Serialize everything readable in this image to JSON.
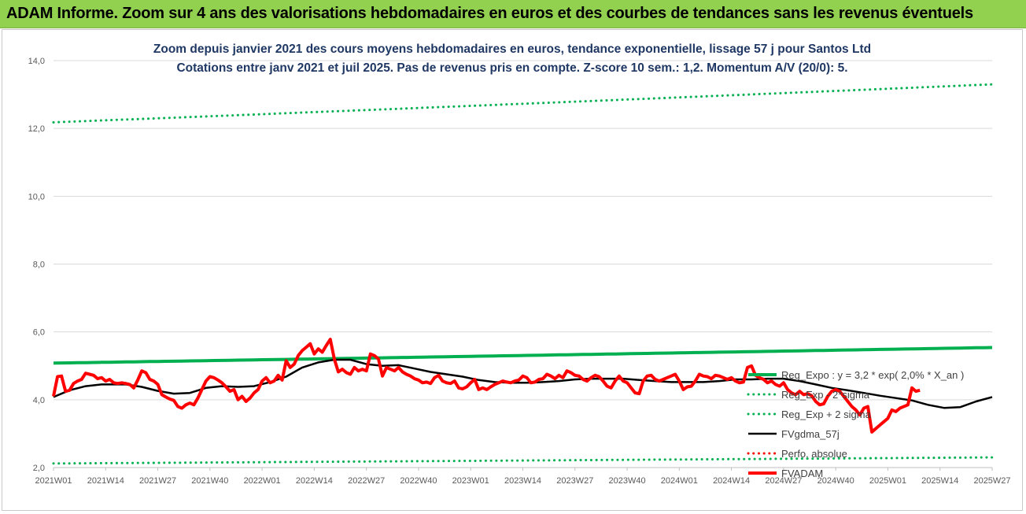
{
  "header": {
    "title": "ADAM Informe. Zoom sur 4 ans des valorisations hebdomadaires en euros et des courbes de tendances sans les revenus éventuels",
    "background_color": "#92d050"
  },
  "chart_data": {
    "type": "line",
    "title_lines": [
      "Zoom depuis janvier 2021 des cours moyens hebdomadaires en euros, tendance exponentielle, lissage 57 j pour Santos Ltd",
      "Cotations entre janv 2021 et juil 2025. Pas de revenus pris en compte. Z-score 10 sem.: 1,2. Momentum A/V (20/0): 5."
    ],
    "xlabel": "",
    "ylabel": "",
    "ylim": [
      2.0,
      14.0
    ],
    "y_ticks": [
      "2,0",
      "4,0",
      "6,0",
      "8,0",
      "10,0",
      "12,0",
      "14,0"
    ],
    "x_week_range": [
      0,
      234
    ],
    "x_ticks": [
      {
        "label": "2021W01",
        "week": 0
      },
      {
        "label": "2021W14",
        "week": 13
      },
      {
        "label": "2021W27",
        "week": 26
      },
      {
        "label": "2021W40",
        "week": 39
      },
      {
        "label": "2022W01",
        "week": 52
      },
      {
        "label": "2022W14",
        "week": 65
      },
      {
        "label": "2022W27",
        "week": 78
      },
      {
        "label": "2022W40",
        "week": 91
      },
      {
        "label": "2023W01",
        "week": 104
      },
      {
        "label": "2023W14",
        "week": 117
      },
      {
        "label": "2023W27",
        "week": 130
      },
      {
        "label": "2023W40",
        "week": 143
      },
      {
        "label": "2024W01",
        "week": 156
      },
      {
        "label": "2024W14",
        "week": 169
      },
      {
        "label": "2024W27",
        "week": 182
      },
      {
        "label": "2024W40",
        "week": 195
      },
      {
        "label": "2025W01",
        "week": 208
      },
      {
        "label": "2025W14",
        "week": 221
      },
      {
        "label": "2025W27",
        "week": 234
      }
    ],
    "grid": "horizontal",
    "legend_position": "right",
    "series": [
      {
        "name": "Reg_Expo : y = 3,2 * exp( 2,0% * X_an )",
        "color": "#00b050",
        "style": "solid-thick",
        "points": [
          [
            0,
            5.08
          ],
          [
            234,
            5.54
          ]
        ]
      },
      {
        "name": "Reg_Exp - 2*sigma",
        "color": "#00b050",
        "style": "dotted",
        "points": [
          [
            0,
            2.12
          ],
          [
            234,
            2.3
          ]
        ]
      },
      {
        "name": "Reg_Exp + 2 sigma",
        "color": "#00b050",
        "style": "dotted",
        "points": [
          [
            0,
            12.18
          ],
          [
            234,
            13.3
          ]
        ]
      },
      {
        "name": "FVgdma_57j",
        "color": "#000000",
        "style": "solid",
        "points": [
          [
            0,
            4.08
          ],
          [
            4,
            4.28
          ],
          [
            8,
            4.4
          ],
          [
            12,
            4.45
          ],
          [
            18,
            4.45
          ],
          [
            22,
            4.38
          ],
          [
            26,
            4.26
          ],
          [
            30,
            4.18
          ],
          [
            34,
            4.2
          ],
          [
            38,
            4.35
          ],
          [
            42,
            4.4
          ],
          [
            46,
            4.38
          ],
          [
            50,
            4.4
          ],
          [
            54,
            4.52
          ],
          [
            58,
            4.68
          ],
          [
            62,
            4.95
          ],
          [
            66,
            5.1
          ],
          [
            70,
            5.18
          ],
          [
            74,
            5.18
          ],
          [
            78,
            5.05
          ],
          [
            82,
            5.0
          ],
          [
            86,
            5.02
          ],
          [
            90,
            4.92
          ],
          [
            94,
            4.82
          ],
          [
            98,
            4.75
          ],
          [
            102,
            4.68
          ],
          [
            106,
            4.58
          ],
          [
            110,
            4.52
          ],
          [
            114,
            4.5
          ],
          [
            118,
            4.5
          ],
          [
            122,
            4.52
          ],
          [
            126,
            4.55
          ],
          [
            130,
            4.6
          ],
          [
            134,
            4.62
          ],
          [
            138,
            4.62
          ],
          [
            142,
            4.62
          ],
          [
            146,
            4.58
          ],
          [
            150,
            4.55
          ],
          [
            154,
            4.52
          ],
          [
            158,
            4.52
          ],
          [
            162,
            4.52
          ],
          [
            166,
            4.55
          ],
          [
            170,
            4.6
          ],
          [
            174,
            4.6
          ],
          [
            178,
            4.62
          ],
          [
            182,
            4.62
          ],
          [
            186,
            4.55
          ],
          [
            190,
            4.45
          ],
          [
            194,
            4.35
          ],
          [
            198,
            4.28
          ],
          [
            202,
            4.2
          ],
          [
            206,
            4.12
          ],
          [
            210,
            4.05
          ],
          [
            214,
            3.98
          ],
          [
            218,
            3.85
          ],
          [
            222,
            3.76
          ],
          [
            226,
            3.78
          ],
          [
            230,
            3.95
          ],
          [
            234,
            4.08
          ]
        ]
      },
      {
        "name": "Perfo. absolue",
        "color": "#ff0000",
        "style": "dotted",
        "points": []
      },
      {
        "name": "FVADAM",
        "color": "#ff0000",
        "style": "solid-thick",
        "points": [
          [
            0,
            4.1
          ],
          [
            1,
            4.68
          ],
          [
            2,
            4.7
          ],
          [
            3,
            4.25
          ],
          [
            4,
            4.28
          ],
          [
            5,
            4.48
          ],
          [
            6,
            4.55
          ],
          [
            7,
            4.6
          ],
          [
            8,
            4.78
          ],
          [
            9,
            4.75
          ],
          [
            10,
            4.72
          ],
          [
            11,
            4.62
          ],
          [
            12,
            4.65
          ],
          [
            13,
            4.55
          ],
          [
            14,
            4.6
          ],
          [
            15,
            4.5
          ],
          [
            16,
            4.48
          ],
          [
            17,
            4.5
          ],
          [
            18,
            4.48
          ],
          [
            19,
            4.45
          ],
          [
            20,
            4.35
          ],
          [
            21,
            4.58
          ],
          [
            22,
            4.85
          ],
          [
            23,
            4.8
          ],
          [
            24,
            4.6
          ],
          [
            25,
            4.55
          ],
          [
            26,
            4.45
          ],
          [
            27,
            4.15
          ],
          [
            28,
            4.08
          ],
          [
            29,
            4.02
          ],
          [
            30,
            3.98
          ],
          [
            31,
            3.8
          ],
          [
            32,
            3.75
          ],
          [
            33,
            3.85
          ],
          [
            34,
            3.9
          ],
          [
            35,
            3.85
          ],
          [
            36,
            4.05
          ],
          [
            37,
            4.3
          ],
          [
            38,
            4.55
          ],
          [
            39,
            4.68
          ],
          [
            40,
            4.65
          ],
          [
            41,
            4.58
          ],
          [
            42,
            4.5
          ],
          [
            43,
            4.38
          ],
          [
            44,
            4.25
          ],
          [
            45,
            4.3
          ],
          [
            46,
            4.0
          ],
          [
            47,
            4.1
          ],
          [
            48,
            3.95
          ],
          [
            49,
            4.05
          ],
          [
            50,
            4.2
          ],
          [
            51,
            4.3
          ],
          [
            52,
            4.55
          ],
          [
            53,
            4.65
          ],
          [
            54,
            4.5
          ],
          [
            55,
            4.55
          ],
          [
            56,
            4.72
          ],
          [
            57,
            4.58
          ],
          [
            58,
            5.15
          ],
          [
            59,
            4.95
          ],
          [
            60,
            5.05
          ],
          [
            61,
            5.3
          ],
          [
            62,
            5.45
          ],
          [
            63,
            5.55
          ],
          [
            64,
            5.65
          ],
          [
            65,
            5.35
          ],
          [
            66,
            5.5
          ],
          [
            67,
            5.4
          ],
          [
            68,
            5.6
          ],
          [
            69,
            5.78
          ],
          [
            70,
            5.2
          ],
          [
            71,
            4.82
          ],
          [
            72,
            4.9
          ],
          [
            73,
            4.8
          ],
          [
            74,
            4.75
          ],
          [
            75,
            4.95
          ],
          [
            76,
            4.85
          ],
          [
            77,
            4.9
          ],
          [
            78,
            4.85
          ],
          [
            79,
            5.35
          ],
          [
            80,
            5.3
          ],
          [
            81,
            5.2
          ],
          [
            82,
            4.7
          ],
          [
            83,
            4.95
          ],
          [
            84,
            4.9
          ],
          [
            85,
            4.85
          ],
          [
            86,
            4.95
          ],
          [
            87,
            4.82
          ],
          [
            88,
            4.75
          ],
          [
            89,
            4.7
          ],
          [
            90,
            4.62
          ],
          [
            91,
            4.58
          ],
          [
            92,
            4.5
          ],
          [
            93,
            4.52
          ],
          [
            94,
            4.48
          ],
          [
            95,
            4.65
          ],
          [
            96,
            4.72
          ],
          [
            97,
            4.55
          ],
          [
            98,
            4.5
          ],
          [
            99,
            4.48
          ],
          [
            100,
            4.55
          ],
          [
            101,
            4.35
          ],
          [
            102,
            4.32
          ],
          [
            103,
            4.38
          ],
          [
            104,
            4.5
          ],
          [
            105,
            4.6
          ],
          [
            106,
            4.3
          ],
          [
            107,
            4.35
          ],
          [
            108,
            4.3
          ],
          [
            109,
            4.38
          ],
          [
            110,
            4.45
          ],
          [
            111,
            4.5
          ],
          [
            112,
            4.55
          ],
          [
            113,
            4.52
          ],
          [
            114,
            4.5
          ],
          [
            115,
            4.55
          ],
          [
            116,
            4.58
          ],
          [
            117,
            4.7
          ],
          [
            118,
            4.65
          ],
          [
            119,
            4.5
          ],
          [
            120,
            4.52
          ],
          [
            121,
            4.6
          ],
          [
            122,
            4.62
          ],
          [
            123,
            4.75
          ],
          [
            124,
            4.7
          ],
          [
            125,
            4.62
          ],
          [
            126,
            4.72
          ],
          [
            127,
            4.65
          ],
          [
            128,
            4.85
          ],
          [
            129,
            4.8
          ],
          [
            130,
            4.72
          ],
          [
            131,
            4.7
          ],
          [
            132,
            4.6
          ],
          [
            133,
            4.55
          ],
          [
            134,
            4.65
          ],
          [
            135,
            4.72
          ],
          [
            136,
            4.68
          ],
          [
            137,
            4.55
          ],
          [
            138,
            4.4
          ],
          [
            139,
            4.35
          ],
          [
            140,
            4.55
          ],
          [
            141,
            4.7
          ],
          [
            142,
            4.55
          ],
          [
            143,
            4.5
          ],
          [
            144,
            4.35
          ],
          [
            145,
            4.2
          ],
          [
            146,
            4.18
          ],
          [
            147,
            4.55
          ],
          [
            148,
            4.7
          ],
          [
            149,
            4.72
          ],
          [
            150,
            4.6
          ],
          [
            151,
            4.55
          ],
          [
            152,
            4.6
          ],
          [
            153,
            4.65
          ],
          [
            154,
            4.7
          ],
          [
            155,
            4.75
          ],
          [
            156,
            4.55
          ],
          [
            157,
            4.3
          ],
          [
            158,
            4.38
          ],
          [
            159,
            4.4
          ],
          [
            160,
            4.55
          ],
          [
            161,
            4.75
          ],
          [
            162,
            4.7
          ],
          [
            163,
            4.68
          ],
          [
            164,
            4.62
          ],
          [
            165,
            4.72
          ],
          [
            166,
            4.7
          ],
          [
            167,
            4.65
          ],
          [
            168,
            4.6
          ],
          [
            169,
            4.65
          ],
          [
            170,
            4.55
          ],
          [
            171,
            4.5
          ],
          [
            172,
            4.52
          ],
          [
            173,
            4.95
          ],
          [
            174,
            5.0
          ],
          [
            175,
            4.72
          ],
          [
            176,
            4.65
          ],
          [
            177,
            4.6
          ],
          [
            178,
            4.5
          ],
          [
            179,
            4.55
          ],
          [
            180,
            4.45
          ],
          [
            181,
            4.4
          ],
          [
            182,
            4.5
          ],
          [
            183,
            4.3
          ],
          [
            184,
            4.2
          ],
          [
            185,
            4.15
          ],
          [
            186,
            4.25
          ],
          [
            187,
            4.15
          ],
          [
            188,
            4.18
          ],
          [
            189,
            4.12
          ],
          [
            190,
            3.95
          ],
          [
            191,
            3.85
          ],
          [
            192,
            3.88
          ],
          [
            193,
            4.1
          ],
          [
            194,
            4.25
          ],
          [
            195,
            4.3
          ],
          [
            196,
            4.25
          ],
          [
            197,
            4.1
          ],
          [
            198,
            3.95
          ],
          [
            199,
            3.8
          ],
          [
            200,
            3.7
          ],
          [
            201,
            3.55
          ],
          [
            202,
            3.75
          ],
          [
            203,
            3.8
          ],
          [
            204,
            3.05
          ],
          [
            205,
            3.15
          ],
          [
            206,
            3.25
          ],
          [
            207,
            3.35
          ],
          [
            208,
            3.45
          ],
          [
            209,
            3.7
          ],
          [
            210,
            3.65
          ],
          [
            211,
            3.75
          ],
          [
            212,
            3.8
          ],
          [
            213,
            3.85
          ],
          [
            214,
            4.35
          ],
          [
            215,
            4.25
          ],
          [
            216,
            4.28
          ]
        ]
      }
    ]
  }
}
